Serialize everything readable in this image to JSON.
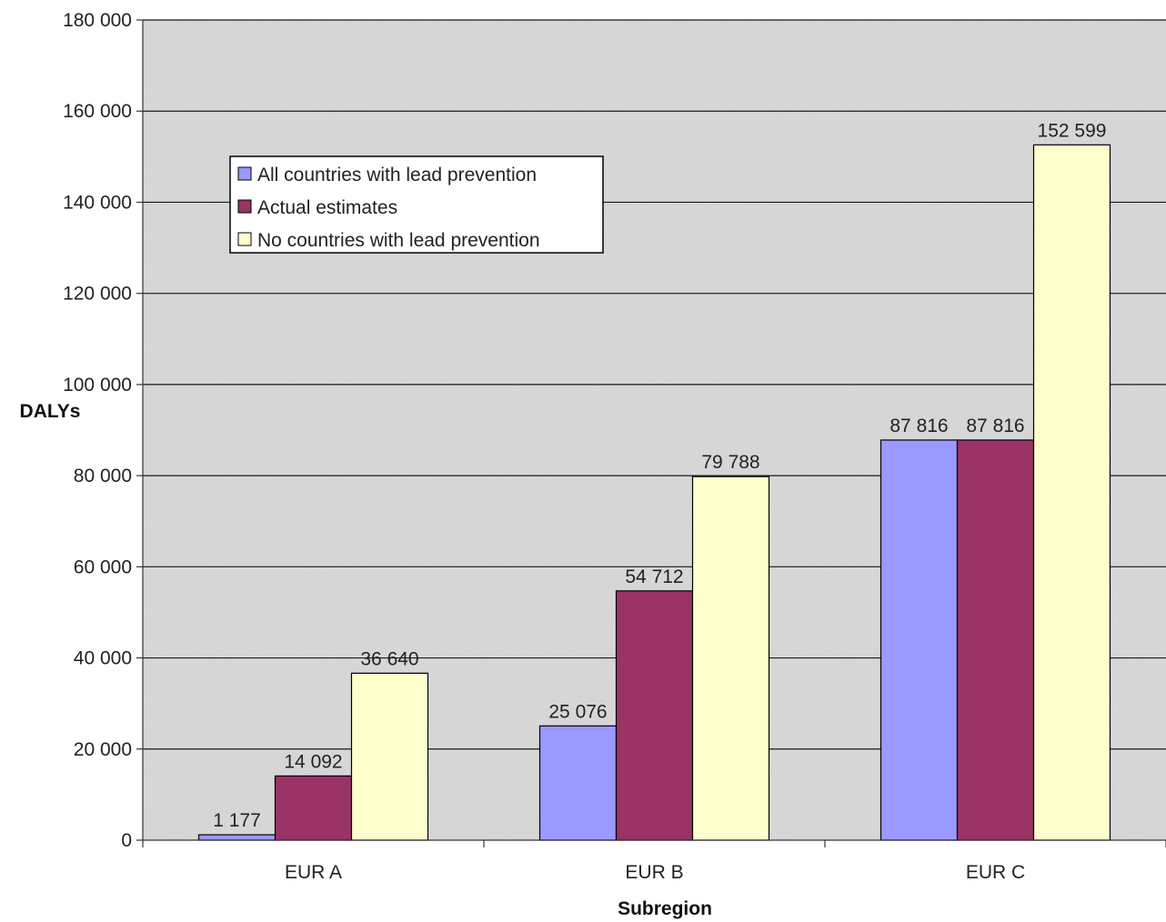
{
  "chart_data": {
    "type": "bar",
    "categories": [
      "EUR A",
      "EUR B",
      "EUR C"
    ],
    "series": [
      {
        "name": "All countries with lead prevention",
        "values": [
          1177,
          25076,
          87816
        ],
        "labels": [
          "1 177",
          "25 076",
          "87 816"
        ],
        "color": "#9999ff"
      },
      {
        "name": "Actual estimates",
        "values": [
          14092,
          54712,
          87816
        ],
        "labels": [
          "14 092",
          "54 712",
          "87 816"
        ],
        "color": "#993366"
      },
      {
        "name": "No countries with lead prevention",
        "values": [
          36640,
          79788,
          152599
        ],
        "labels": [
          "36 640",
          "79 788",
          "152 599"
        ],
        "color": "#ffffcc"
      }
    ],
    "xlabel": "Subregion",
    "ylabel": "DALYs",
    "ylim": [
      0,
      180000
    ],
    "yticks": [
      0,
      20000,
      40000,
      60000,
      80000,
      100000,
      120000,
      140000,
      160000,
      180000
    ],
    "ytick_labels": [
      "0",
      "20 000",
      "40 000",
      "60 000",
      "80 000",
      "100 000",
      "120 000",
      "140 000",
      "160 000",
      "180 000"
    ],
    "grid": true,
    "legend_position": "upper-left",
    "plot_background": "#d9d9d9"
  }
}
